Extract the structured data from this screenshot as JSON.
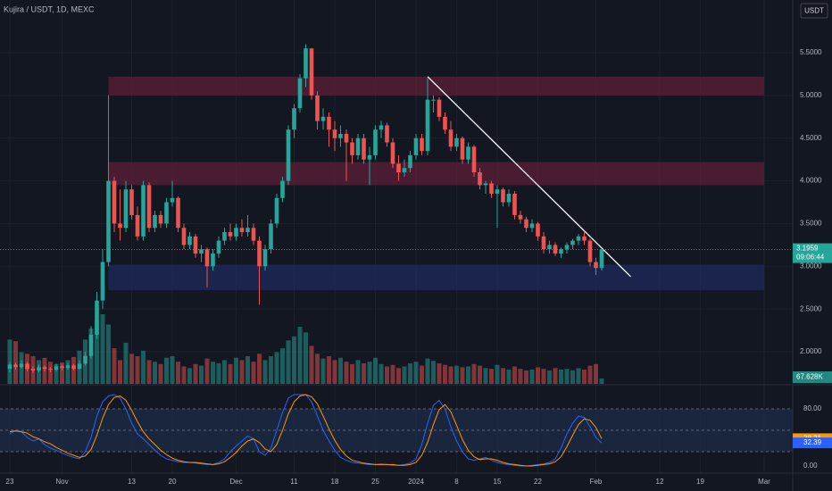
{
  "chart_data": {
    "type": "candlestick",
    "title": "Kujira / USDT, 1D, MEXC",
    "currency_button": "USDT",
    "countdown": "09:06:44",
    "up_color": "#26a69a",
    "down_color": "#ef5350",
    "grid": true,
    "log_scale": false,
    "dates": [
      "10-23",
      "10-24",
      "10-25",
      "10-26",
      "10-27",
      "10-28",
      "10-29",
      "10-30",
      "10-31",
      "11-01",
      "11-02",
      "11-03",
      "11-04",
      "11-05",
      "11-06",
      "11-07",
      "11-08",
      "11-09",
      "11-10",
      "11-11",
      "11-12",
      "11-13",
      "11-14",
      "11-15",
      "11-16",
      "11-17",
      "11-18",
      "11-19",
      "11-20",
      "11-21",
      "11-22",
      "11-23",
      "11-24",
      "11-25",
      "11-26",
      "11-27",
      "11-28",
      "11-29",
      "11-30",
      "12-01",
      "12-02",
      "12-03",
      "12-04",
      "12-05",
      "12-06",
      "12-07",
      "12-08",
      "12-09",
      "12-10",
      "12-11",
      "12-12",
      "12-13",
      "12-14",
      "12-15",
      "12-16",
      "12-17",
      "12-18",
      "12-19",
      "12-20",
      "12-21",
      "12-22",
      "12-23",
      "12-24",
      "12-25",
      "12-26",
      "12-27",
      "12-28",
      "12-29",
      "12-30",
      "12-31",
      "01-01",
      "01-02",
      "01-03",
      "01-04",
      "01-05",
      "01-06",
      "01-07",
      "01-08",
      "01-09",
      "01-10",
      "01-11",
      "01-12",
      "01-13",
      "01-14",
      "01-15",
      "01-16",
      "01-17",
      "01-18",
      "01-19",
      "01-20",
      "01-21",
      "01-22",
      "01-23",
      "01-24",
      "01-25",
      "01-26",
      "01-27",
      "01-28",
      "01-29",
      "01-30",
      "01-31",
      "02-01",
      "02-02"
    ],
    "open": [
      1.8,
      1.85,
      1.82,
      1.86,
      1.8,
      1.78,
      1.82,
      1.8,
      1.79,
      1.83,
      1.81,
      1.84,
      1.8,
      1.86,
      1.95,
      2.2,
      2.6,
      3.05,
      4.0,
      3.5,
      3.45,
      3.9,
      3.6,
      3.35,
      3.95,
      3.45,
      3.6,
      3.5,
      3.75,
      3.8,
      3.45,
      3.25,
      3.35,
      3.15,
      3.2,
      3.0,
      3.15,
      3.3,
      3.4,
      3.35,
      3.45,
      3.4,
      3.45,
      3.3,
      3.0,
      3.2,
      3.5,
      3.8,
      4.0,
      4.6,
      4.85,
      5.2,
      5.55,
      5.0,
      4.7,
      4.75,
      4.6,
      4.5,
      4.55,
      4.45,
      4.3,
      4.5,
      4.25,
      4.3,
      4.6,
      4.65,
      4.45,
      4.2,
      4.1,
      4.15,
      4.3,
      4.5,
      4.35,
      4.95,
      4.95,
      4.75,
      4.6,
      4.4,
      4.5,
      4.25,
      4.4,
      4.1,
      3.95,
      3.97,
      3.85,
      3.9,
      3.75,
      3.85,
      3.6,
      3.55,
      3.45,
      3.5,
      3.35,
      3.2,
      3.25,
      3.15,
      3.2,
      3.25,
      3.3,
      3.35,
      3.3,
      3.05,
      2.98
    ],
    "high": [
      1.88,
      1.87,
      1.9,
      1.88,
      1.83,
      1.85,
      1.84,
      1.82,
      1.86,
      1.85,
      1.87,
      1.86,
      1.9,
      2.0,
      2.3,
      2.7,
      3.2,
      5.0,
      4.05,
      3.9,
      4.0,
      3.95,
      3.7,
      4.0,
      3.98,
      3.65,
      3.65,
      3.8,
      4.0,
      3.82,
      3.5,
      3.4,
      3.38,
      3.25,
      3.22,
      3.2,
      3.35,
      3.45,
      3.5,
      3.5,
      3.55,
      3.6,
      3.5,
      3.35,
      3.25,
      3.55,
      3.85,
      4.05,
      4.65,
      4.9,
      5.25,
      5.6,
      5.55,
      5.05,
      4.85,
      4.8,
      4.7,
      4.65,
      4.6,
      4.5,
      4.55,
      4.55,
      4.4,
      4.65,
      4.7,
      4.68,
      4.5,
      4.3,
      4.25,
      4.35,
      4.55,
      4.55,
      5.2,
      5.0,
      4.98,
      4.8,
      4.7,
      4.55,
      4.52,
      4.45,
      4.42,
      4.15,
      4.0,
      4.0,
      3.95,
      3.92,
      3.9,
      3.88,
      3.65,
      3.58,
      3.55,
      3.52,
      3.4,
      3.3,
      3.28,
      3.22,
      3.28,
      3.32,
      3.38,
      3.4,
      3.32,
      3.1,
      3.2
    ],
    "low": [
      1.76,
      1.79,
      1.8,
      1.77,
      1.75,
      1.76,
      1.77,
      1.76,
      1.77,
      1.78,
      1.79,
      1.78,
      1.79,
      1.84,
      1.92,
      2.15,
      2.5,
      3.0,
      3.4,
      3.3,
      3.4,
      3.55,
      3.3,
      3.3,
      3.4,
      3.4,
      3.45,
      3.45,
      3.7,
      3.4,
      3.2,
      3.2,
      3.1,
      3.05,
      2.75,
      2.95,
      3.1,
      3.25,
      3.3,
      3.3,
      3.35,
      3.35,
      3.25,
      2.55,
      2.95,
      3.15,
      3.45,
      3.75,
      3.95,
      4.5,
      4.8,
      5.1,
      4.95,
      4.6,
      4.6,
      4.4,
      4.35,
      4.4,
      4.0,
      4.2,
      4.25,
      4.2,
      3.95,
      4.25,
      4.5,
      4.4,
      4.15,
      4.0,
      4.05,
      4.1,
      4.25,
      4.3,
      4.3,
      4.8,
      4.7,
      4.55,
      4.35,
      4.35,
      4.2,
      4.2,
      4.05,
      3.9,
      3.85,
      3.8,
      3.45,
      3.7,
      3.7,
      3.55,
      3.5,
      3.4,
      3.4,
      3.3,
      3.15,
      3.15,
      3.12,
      3.1,
      3.15,
      3.2,
      3.25,
      3.25,
      3.0,
      2.9,
      2.95
    ],
    "close": [
      1.85,
      1.82,
      1.86,
      1.8,
      1.78,
      1.82,
      1.8,
      1.79,
      1.83,
      1.81,
      1.84,
      1.8,
      1.86,
      1.95,
      2.2,
      2.6,
      3.05,
      4.0,
      3.5,
      3.45,
      3.9,
      3.6,
      3.35,
      3.95,
      3.45,
      3.6,
      3.5,
      3.75,
      3.8,
      3.45,
      3.25,
      3.35,
      3.15,
      3.2,
      3.0,
      3.15,
      3.3,
      3.4,
      3.35,
      3.45,
      3.4,
      3.45,
      3.3,
      3.0,
      3.2,
      3.5,
      3.8,
      4.0,
      4.6,
      4.85,
      5.2,
      5.55,
      5.0,
      4.7,
      4.75,
      4.6,
      4.5,
      4.55,
      4.45,
      4.3,
      4.5,
      4.25,
      4.3,
      4.6,
      4.65,
      4.45,
      4.2,
      4.1,
      4.15,
      4.3,
      4.5,
      4.35,
      4.95,
      4.95,
      4.75,
      4.6,
      4.4,
      4.5,
      4.25,
      4.4,
      4.1,
      3.95,
      3.97,
      3.85,
      3.9,
      3.75,
      3.85,
      3.6,
      3.55,
      3.45,
      3.5,
      3.35,
      3.2,
      3.25,
      3.15,
      3.2,
      3.25,
      3.3,
      3.35,
      3.3,
      3.05,
      2.98,
      3.1959
    ],
    "volume": {
      "values": [
        560000,
        540000,
        400000,
        380000,
        350000,
        300000,
        330000,
        280000,
        250000,
        270000,
        300000,
        340000,
        420000,
        560000,
        700000,
        800000,
        880000,
        750000,
        450000,
        300000,
        520000,
        380000,
        350000,
        420000,
        300000,
        280000,
        250000,
        330000,
        350000,
        280000,
        220000,
        200000,
        250000,
        230000,
        320000,
        280000,
        260000,
        300000,
        250000,
        330000,
        300000,
        350000,
        280000,
        380000,
        300000,
        350000,
        400000,
        450000,
        550000,
        600000,
        720000,
        650000,
        480000,
        380000,
        320000,
        350000,
        300000,
        330000,
        280000,
        250000,
        300000,
        260000,
        280000,
        330000,
        250000,
        220000,
        240000,
        200000,
        220000,
        260000,
        280000,
        230000,
        320000,
        290000,
        260000,
        240000,
        220000,
        230000,
        210000,
        220000,
        250000,
        230000,
        200000,
        190000,
        240000,
        200000,
        180000,
        220000,
        190000,
        170000,
        180000,
        210000,
        190000,
        170000,
        200000,
        180000,
        190000,
        170000,
        200000,
        180000,
        230000,
        250000,
        67628
      ],
      "value_labels": [
        null,
        null,
        null,
        null,
        null,
        null,
        null,
        null,
        null,
        null,
        null,
        null,
        null,
        null,
        null,
        null,
        null,
        null,
        null,
        null,
        null,
        null,
        null,
        null,
        null,
        null,
        null,
        null,
        null,
        null,
        null,
        null,
        null,
        null,
        null,
        null,
        null,
        null,
        null,
        null,
        null,
        null,
        null,
        null,
        null,
        null,
        null,
        null,
        null,
        null,
        null,
        null,
        null,
        null,
        null,
        null,
        null,
        null,
        null,
        null,
        null,
        null,
        null,
        null,
        null,
        null,
        null,
        null,
        null,
        null,
        null,
        null,
        null,
        null,
        null,
        null,
        null,
        null,
        null,
        null,
        null,
        null,
        null,
        null,
        null,
        null,
        null,
        null,
        null,
        null,
        null,
        null,
        null,
        null,
        null,
        null,
        null,
        null,
        null,
        null,
        null,
        null,
        "67.628K"
      ]
    },
    "ylim": [
      1.624,
      6.117
    ],
    "yticks": [
      {
        "value": 5.5,
        "label": "5.5000"
      },
      {
        "value": 5.0,
        "label": "5.0000"
      },
      {
        "value": 4.5,
        "label": "4.5000"
      },
      {
        "value": 4.0,
        "label": "4.0000"
      },
      {
        "value": 3.5,
        "label": "3.5000"
      },
      {
        "value": 3.0,
        "label": "3.0000"
      },
      {
        "value": 2.5,
        "label": "2.5000"
      },
      {
        "value": 2.0,
        "label": "2.0000"
      }
    ],
    "xticks": [
      {
        "value": "10-23",
        "label": "23"
      },
      {
        "value": "11-01",
        "label": "Nov"
      },
      {
        "value": "11-13",
        "label": "13"
      },
      {
        "value": "11-20",
        "label": "20"
      },
      {
        "value": "12-01",
        "label": "Dec"
      },
      {
        "value": "12-11",
        "label": "11"
      },
      {
        "value": "12-18",
        "label": "18"
      },
      {
        "value": "12-25",
        "label": "25"
      },
      {
        "value": "01-01",
        "label": "2024"
      },
      {
        "value": "01-08",
        "label": "8"
      },
      {
        "value": "01-15",
        "label": "15"
      },
      {
        "value": "01-22",
        "label": "22"
      },
      {
        "value": "02-01",
        "label": "Feb"
      },
      {
        "value": "02-12",
        "label": "12"
      },
      {
        "value": "02-19",
        "label": "19"
      },
      {
        "value": "03-01",
        "label": "Mar"
      }
    ],
    "zones": [
      {
        "from": "11-09",
        "to": "03-01",
        "low": 5.0,
        "high": 5.22,
        "color": "#5c1f38"
      },
      {
        "from": "11-09",
        "to": "03-01",
        "low": 3.95,
        "high": 4.22,
        "color": "#5c1f38"
      },
      {
        "from": "11-09",
        "to": "03-01",
        "low": 2.72,
        "high": 3.02,
        "color": "#1e2a5c"
      }
    ],
    "trendline": {
      "start": {
        "date": "01-03",
        "price": 5.22
      },
      "end": {
        "date": "02-07",
        "price": 2.88
      },
      "color": "#ffffff"
    },
    "oscillator": {
      "ylim": [
        -10,
        112.5
      ],
      "yticks": [
        {
          "value": 80,
          "label": "80.00"
        },
        {
          "value": 0,
          "label": "0.00"
        }
      ],
      "bands": [
        80,
        50,
        20
      ],
      "band_color": "#1e3150",
      "series": [
        {
          "color": "#2962ff",
          "values": [
            45,
            50,
            48,
            40,
            35,
            38,
            30,
            25,
            22,
            18,
            15,
            12,
            10,
            20,
            40,
            70,
            90,
            98,
            100,
            95,
            80,
            60,
            45,
            38,
            30,
            22,
            15,
            10,
            8,
            6,
            5,
            5,
            4,
            3,
            2,
            2,
            5,
            10,
            20,
            28,
            35,
            42,
            38,
            20,
            15,
            25,
            50,
            75,
            95,
            100,
            100,
            100,
            90,
            70,
            50,
            35,
            22,
            12,
            8,
            5,
            4,
            3,
            2,
            2,
            3,
            2,
            1,
            1,
            2,
            4,
            10,
            30,
            60,
            85,
            92,
            80,
            55,
            35,
            20,
            10,
            8,
            10,
            12,
            8,
            5,
            3,
            2,
            1,
            0,
            0,
            1,
            2,
            3,
            5,
            10,
            25,
            45,
            60,
            70,
            68,
            55,
            40,
            32.39
          ]
        },
        {
          "color": "#ff9800",
          "values": [
            48,
            49,
            48,
            46,
            41,
            38,
            34,
            31,
            26,
            22,
            18,
            15,
            12,
            14,
            23,
            43,
            67,
            86,
            96,
            98,
            92,
            78,
            62,
            48,
            38,
            30,
            22,
            16,
            11,
            8,
            6,
            5,
            5,
            4,
            3,
            2,
            3,
            6,
            12,
            19,
            28,
            35,
            38,
            33,
            24,
            20,
            30,
            50,
            73,
            90,
            98,
            100,
            97,
            87,
            70,
            52,
            36,
            23,
            14,
            8,
            6,
            4,
            3,
            2,
            2,
            2,
            2,
            1,
            1,
            2,
            5,
            15,
            33,
            58,
            79,
            86,
            76,
            57,
            37,
            22,
            13,
            9,
            10,
            10,
            8,
            5,
            3,
            2,
            1,
            0,
            0,
            1,
            2,
            3,
            6,
            13,
            27,
            43,
            58,
            66,
            64,
            54,
            38.21
          ]
        }
      ]
    }
  }
}
